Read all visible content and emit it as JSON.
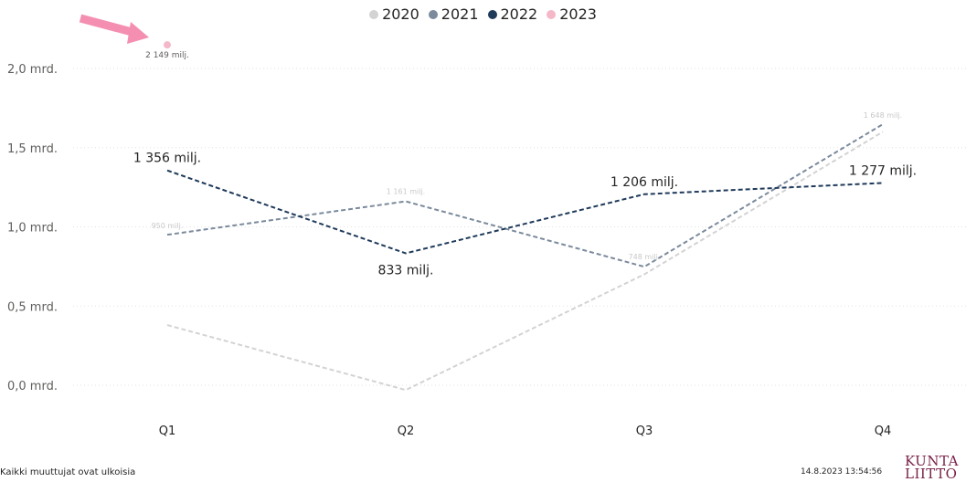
{
  "chart_data": {
    "type": "line",
    "title": "",
    "xlabel": "",
    "ylabel": "",
    "categories": [
      "Q1",
      "Q2",
      "Q3",
      "Q4"
    ],
    "y_ticks": [
      {
        "value": 0.0,
        "label": "0,0 mrd."
      },
      {
        "value": 0.5,
        "label": "0,5 mrd."
      },
      {
        "value": 1.0,
        "label": "1,0 mrd."
      },
      {
        "value": 1.5,
        "label": "1,5 mrd."
      },
      {
        "value": 2.0,
        "label": "2,0 mrd."
      }
    ],
    "ylim": [
      0,
      2.1
    ],
    "grid": true,
    "legend_position": "top-center",
    "series": [
      {
        "name": "2020",
        "color": "#d3d3d3",
        "values": [
          0.38,
          -0.03,
          0.7,
          1.6
        ],
        "labels": [
          "",
          "",
          "",
          ""
        ]
      },
      {
        "name": "2021",
        "color": "#7b8a9c",
        "values": [
          0.95,
          1.161,
          0.748,
          1.648
        ],
        "labels": [
          "950 milj.",
          "1 161 milj.",
          "748 milj.",
          "1 648 milj."
        ]
      },
      {
        "name": "2022",
        "color": "#1f3a5a",
        "values": [
          1.356,
          0.833,
          1.206,
          1.277
        ],
        "labels": [
          "1 356 milj.",
          "833 milj.",
          "1 206 milj.",
          "1 277 milj."
        ]
      },
      {
        "name": "2023",
        "color": "#f4b8c9",
        "values": [
          2.149,
          null,
          null,
          null
        ],
        "labels": [
          "2 149 milj.",
          "",
          "",
          ""
        ]
      }
    ]
  },
  "arrow_color": "#f48fb1",
  "footer": {
    "note": "Kaikki muuttujat ovat ulkoisia",
    "timestamp": "14.8.2023 13:54:56",
    "logo_line1": "KUNTA",
    "logo_line2": "LIITTO"
  }
}
